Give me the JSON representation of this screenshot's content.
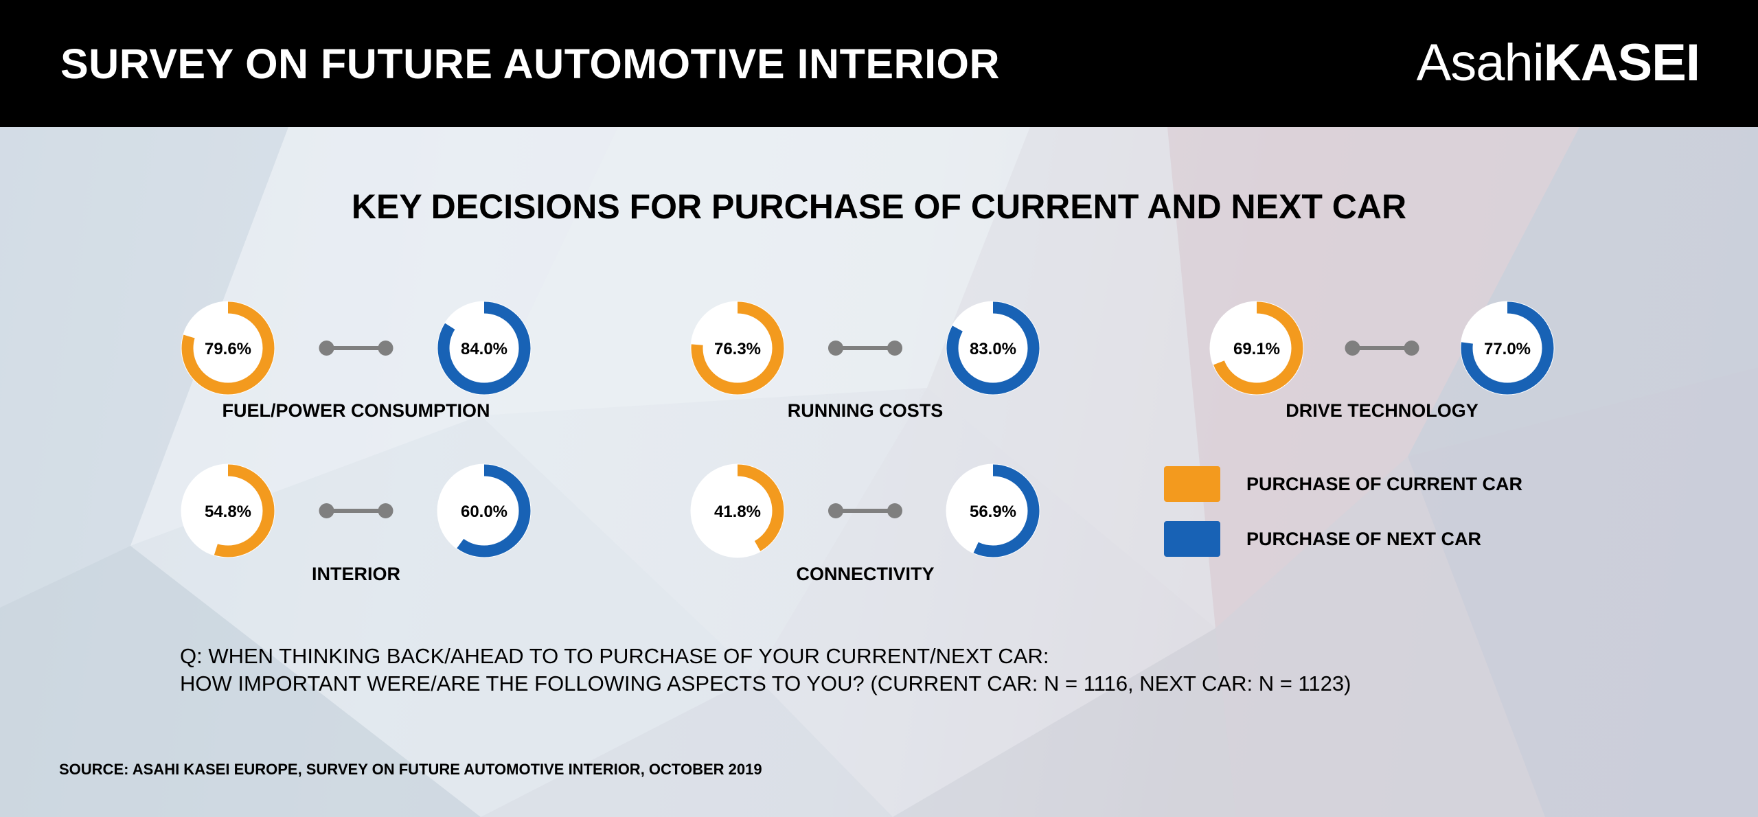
{
  "header": {
    "title": "SURVEY ON FUTURE AUTOMOTIVE INTERIOR",
    "logo_part1": "Asahi",
    "logo_part2": "KASEI"
  },
  "colors": {
    "current": "#F39A1E",
    "next": "#1862B5",
    "connector": "#7f7f7f",
    "header_bg": "#000000"
  },
  "chart_data": {
    "type": "donut",
    "title": "KEY DECISIONS FOR PURCHASE OF CURRENT AND NEXT CAR",
    "series": [
      {
        "name": "PURCHASE OF CURRENT CAR",
        "color": "#F39A1E"
      },
      {
        "name": "PURCHASE OF NEXT CAR",
        "color": "#1862B5"
      }
    ],
    "categories": [
      {
        "label": "FUEL/POWER CONSUMPTION",
        "current": 79.6,
        "next": 84.0,
        "current_label": "79.6%",
        "next_label": "84.0%"
      },
      {
        "label": "RUNNING COSTS",
        "current": 76.3,
        "next": 83.0,
        "current_label": "76.3%",
        "next_label": "83.0%"
      },
      {
        "label": "DRIVE TECHNOLOGY",
        "current": 69.1,
        "next": 77.0,
        "current_label": "69.1%",
        "next_label": "77.0%"
      },
      {
        "label": "INTERIOR",
        "current": 54.8,
        "next": 60.0,
        "current_label": "54.8%",
        "next_label": "60.0%"
      },
      {
        "label": "CONNECTIVITY",
        "current": 41.8,
        "next": 56.9,
        "current_label": "41.8%",
        "next_label": "56.9%"
      }
    ]
  },
  "legend": {
    "current": "PURCHASE OF CURRENT CAR",
    "next": "PURCHASE OF NEXT CAR"
  },
  "question": {
    "line1": "Q: WHEN THINKING BACK/AHEAD TO TO PURCHASE OF YOUR CURRENT/NEXT CAR:",
    "line2": "HOW IMPORTANT WERE/ARE THE FOLLOWING ASPECTS TO YOU? (CURRENT CAR: N = 1116, NEXT CAR: N = 1123)"
  },
  "source": "SOURCE: ASAHI KASEI EUROPE, SURVEY ON FUTURE AUTOMOTIVE INTERIOR, OCTOBER 2019"
}
